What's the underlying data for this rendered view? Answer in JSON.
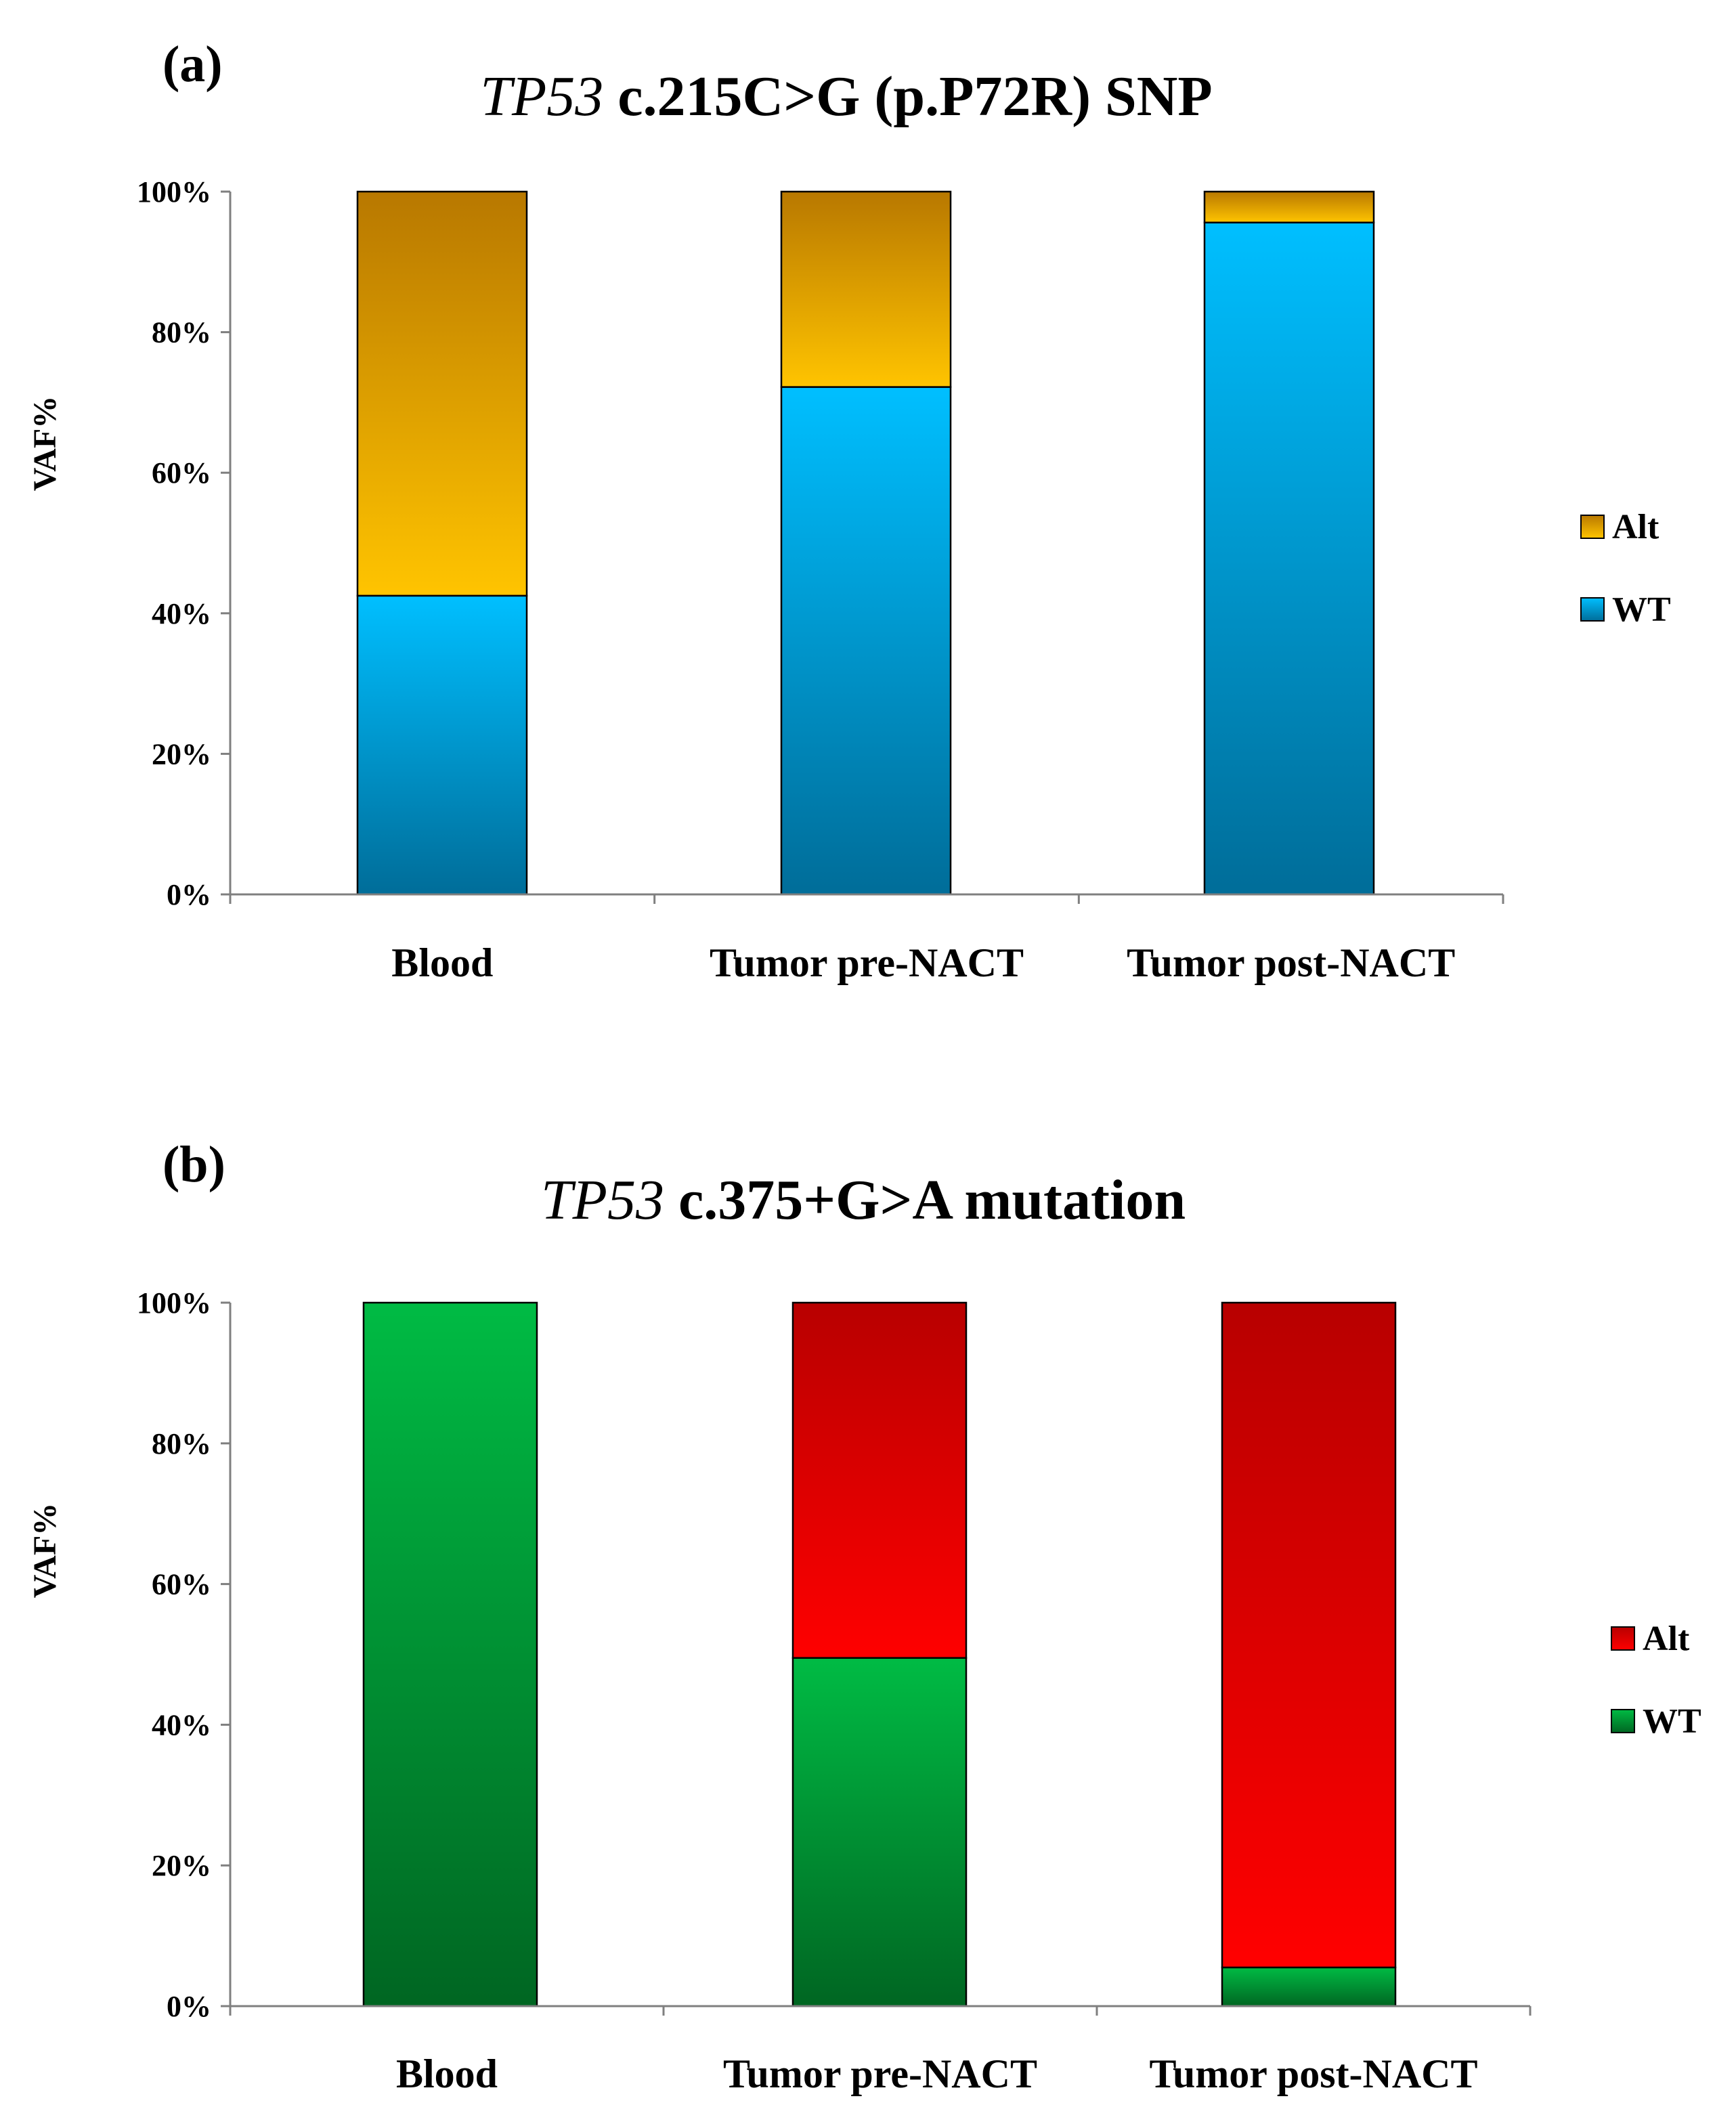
{
  "colors": {
    "gold_top": "#b87800",
    "gold_bottom": "#ffc400",
    "blue_top": "#00bfff",
    "blue_bottom": "#006d99",
    "red_top": "#b80000",
    "red_bottom": "#ff0000",
    "green_top": "#00bb44",
    "green_bottom": "#006622",
    "axis": "#7f7f7f"
  },
  "chart_data": [
    {
      "type": "bar",
      "stacked": true,
      "panel_label": "(a)",
      "title_italic": "TP53",
      "title_rest": " c.215C>G (p.P72R) SNP",
      "ylabel": "VAF%",
      "xlabel": "",
      "ylim": [
        0,
        100
      ],
      "yticks": [
        "0%",
        "20%",
        "40%",
        "60%",
        "80%",
        "100%"
      ],
      "categories": [
        "Blood",
        "Tumor pre-NACT",
        "Tumor post-NACT"
      ],
      "series": [
        {
          "name": "WT",
          "values": [
            42.5,
            72.2,
            95.6
          ],
          "color_top": "#00bfff",
          "color_bottom": "#006d99"
        },
        {
          "name": "Alt",
          "values": [
            57.5,
            27.8,
            4.4
          ],
          "color_top": "#b87800",
          "color_bottom": "#ffc400"
        }
      ],
      "legend_order": [
        "Alt",
        "WT"
      ],
      "legend": "right",
      "grid": false
    },
    {
      "type": "bar",
      "stacked": true,
      "panel_label": "(b)",
      "title_italic": "TP53",
      "title_rest": " c.375+G>A mutation",
      "ylabel": "VAF%",
      "xlabel": "",
      "ylim": [
        0,
        100
      ],
      "yticks": [
        "0%",
        "20%",
        "40%",
        "60%",
        "80%",
        "100%"
      ],
      "categories": [
        "Blood",
        "Tumor pre-NACT",
        "Tumor post-NACT"
      ],
      "series": [
        {
          "name": "WT",
          "values": [
            100,
            49.5,
            5.5
          ],
          "color_top": "#00bb44",
          "color_bottom": "#006622"
        },
        {
          "name": "Alt",
          "values": [
            0,
            50.5,
            94.5
          ],
          "color_top": "#b80000",
          "color_bottom": "#ff0000"
        }
      ],
      "legend_order": [
        "Alt",
        "WT"
      ],
      "legend": "right",
      "grid": false
    }
  ]
}
